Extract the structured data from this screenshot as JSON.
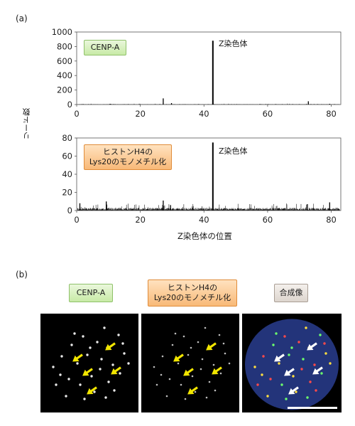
{
  "panel_a_label": "(a)",
  "panel_b_label": "(b)",
  "y_axis_label": "リード数",
  "x_axis_label": "Z染色体の位置",
  "chart_data": [
    {
      "type": "bar",
      "title": "",
      "legend_badge": "CENP-A",
      "annotation": "Z染色体",
      "xlabel": "",
      "ylabel": "リード数",
      "xlim": [
        0,
        83
      ],
      "ylim": [
        0,
        1000
      ],
      "xticks": [
        0,
        20,
        40,
        60,
        80
      ],
      "yticks": [
        0,
        200,
        400,
        600,
        800,
        1000
      ],
      "baseline": 3,
      "peaks": [
        {
          "x": 10.5,
          "y": 10
        },
        {
          "x": 27.2,
          "y": 85
        },
        {
          "x": 29.8,
          "y": 20
        },
        {
          "x": 42.8,
          "y": 880
        },
        {
          "x": 72.8,
          "y": 45
        },
        {
          "x": 79.5,
          "y": 10
        }
      ]
    },
    {
      "type": "bar",
      "title": "",
      "legend_badge": "ヒストンH4の\nLys20のモノメチル化",
      "annotation": "Z染色体",
      "xlabel": "Z染色体の位置",
      "ylabel": "リード数",
      "xlim": [
        0,
        83
      ],
      "ylim": [
        0,
        80
      ],
      "xticks": [
        0,
        20,
        40,
        60,
        80
      ],
      "yticks": [
        0,
        20,
        40,
        60,
        80
      ],
      "baseline": 2,
      "peaks": [
        {
          "x": 1.0,
          "y": 8
        },
        {
          "x": 9.3,
          "y": 10
        },
        {
          "x": 27.2,
          "y": 11
        },
        {
          "x": 29.5,
          "y": 6
        },
        {
          "x": 42.8,
          "y": 75
        },
        {
          "x": 72.5,
          "y": 7
        },
        {
          "x": 79.5,
          "y": 9
        }
      ]
    }
  ],
  "panel_b": {
    "badges": {
      "cenpa": "CENP-A",
      "h4k20": "ヒストンH4の\nLys20のモノメチル化",
      "merge": "合成像"
    },
    "arrow_color": "#f2e600",
    "merge_arrow_color": "#ffffff",
    "nucleus_color": "#23347a",
    "scale_bar_color": "#ffffff"
  }
}
